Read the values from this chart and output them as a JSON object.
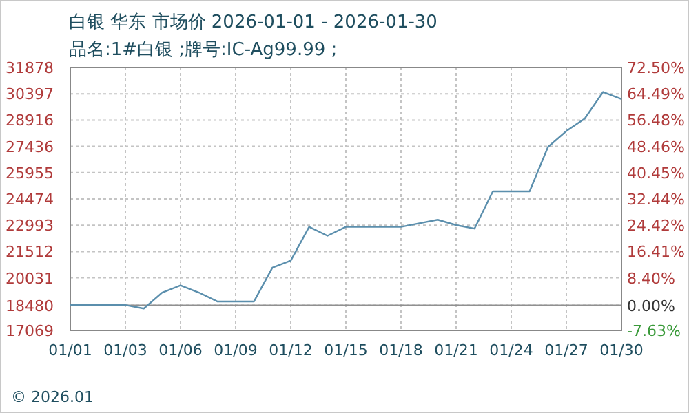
{
  "chart_data": {
    "type": "line",
    "title": "白银 华东 市场价 2026-01-01 - 2026-01-30",
    "subtitle": "品名:1#白银 ;牌号:IC-Ag99.99 ;",
    "categories": [
      "01/01",
      null,
      null,
      "01/03",
      null,
      null,
      "01/06",
      null,
      null,
      "01/09",
      null,
      null,
      "01/12",
      null,
      null,
      "01/15",
      null,
      null,
      "01/18",
      null,
      null,
      "01/21",
      null,
      null,
      "01/24",
      null,
      null,
      "01/27",
      null,
      null,
      "01/30"
    ],
    "series": [
      {
        "color": "#5b8fad",
        "values": [
          18500,
          18500,
          18500,
          18500,
          18300,
          19200,
          19600,
          19200,
          18700,
          18700,
          18700,
          20600,
          21000,
          22900,
          22400,
          22900,
          22900,
          22900,
          22900,
          23100,
          23300,
          23000,
          22800,
          24900,
          24900,
          24900,
          27400,
          28300,
          29000,
          30500,
          30100
        ]
      }
    ],
    "ylim": [
      17069,
      31878
    ],
    "yticks": [
      17069,
      18480,
      20031,
      21512,
      22993,
      24474,
      25955,
      27436,
      28916,
      30397,
      31878
    ],
    "y2lim": [
      -7.63,
      72.5
    ],
    "y2ticks": [
      {
        "value": -7.63,
        "label": "-7.63%"
      },
      {
        "value": 0,
        "label": "0.00%"
      },
      {
        "value": 8.4,
        "label": "8.40%"
      },
      {
        "value": 16.41,
        "label": "16.41%"
      },
      {
        "value": 24.42,
        "label": "24.42%"
      },
      {
        "value": 32.44,
        "label": "32.44%"
      },
      {
        "value": 40.45,
        "label": "40.45%"
      },
      {
        "value": 48.46,
        "label": "48.46%"
      },
      {
        "value": 56.48,
        "label": "56.48%"
      },
      {
        "value": 64.49,
        "label": "64.49%"
      },
      {
        "value": 72.5,
        "label": "72.50%"
      }
    ],
    "grid": true,
    "ref_lines": [
      {
        "axis": "y",
        "value": 18480,
        "color": "#909090"
      }
    ],
    "annotations": [
      "© 2026.01"
    ]
  }
}
